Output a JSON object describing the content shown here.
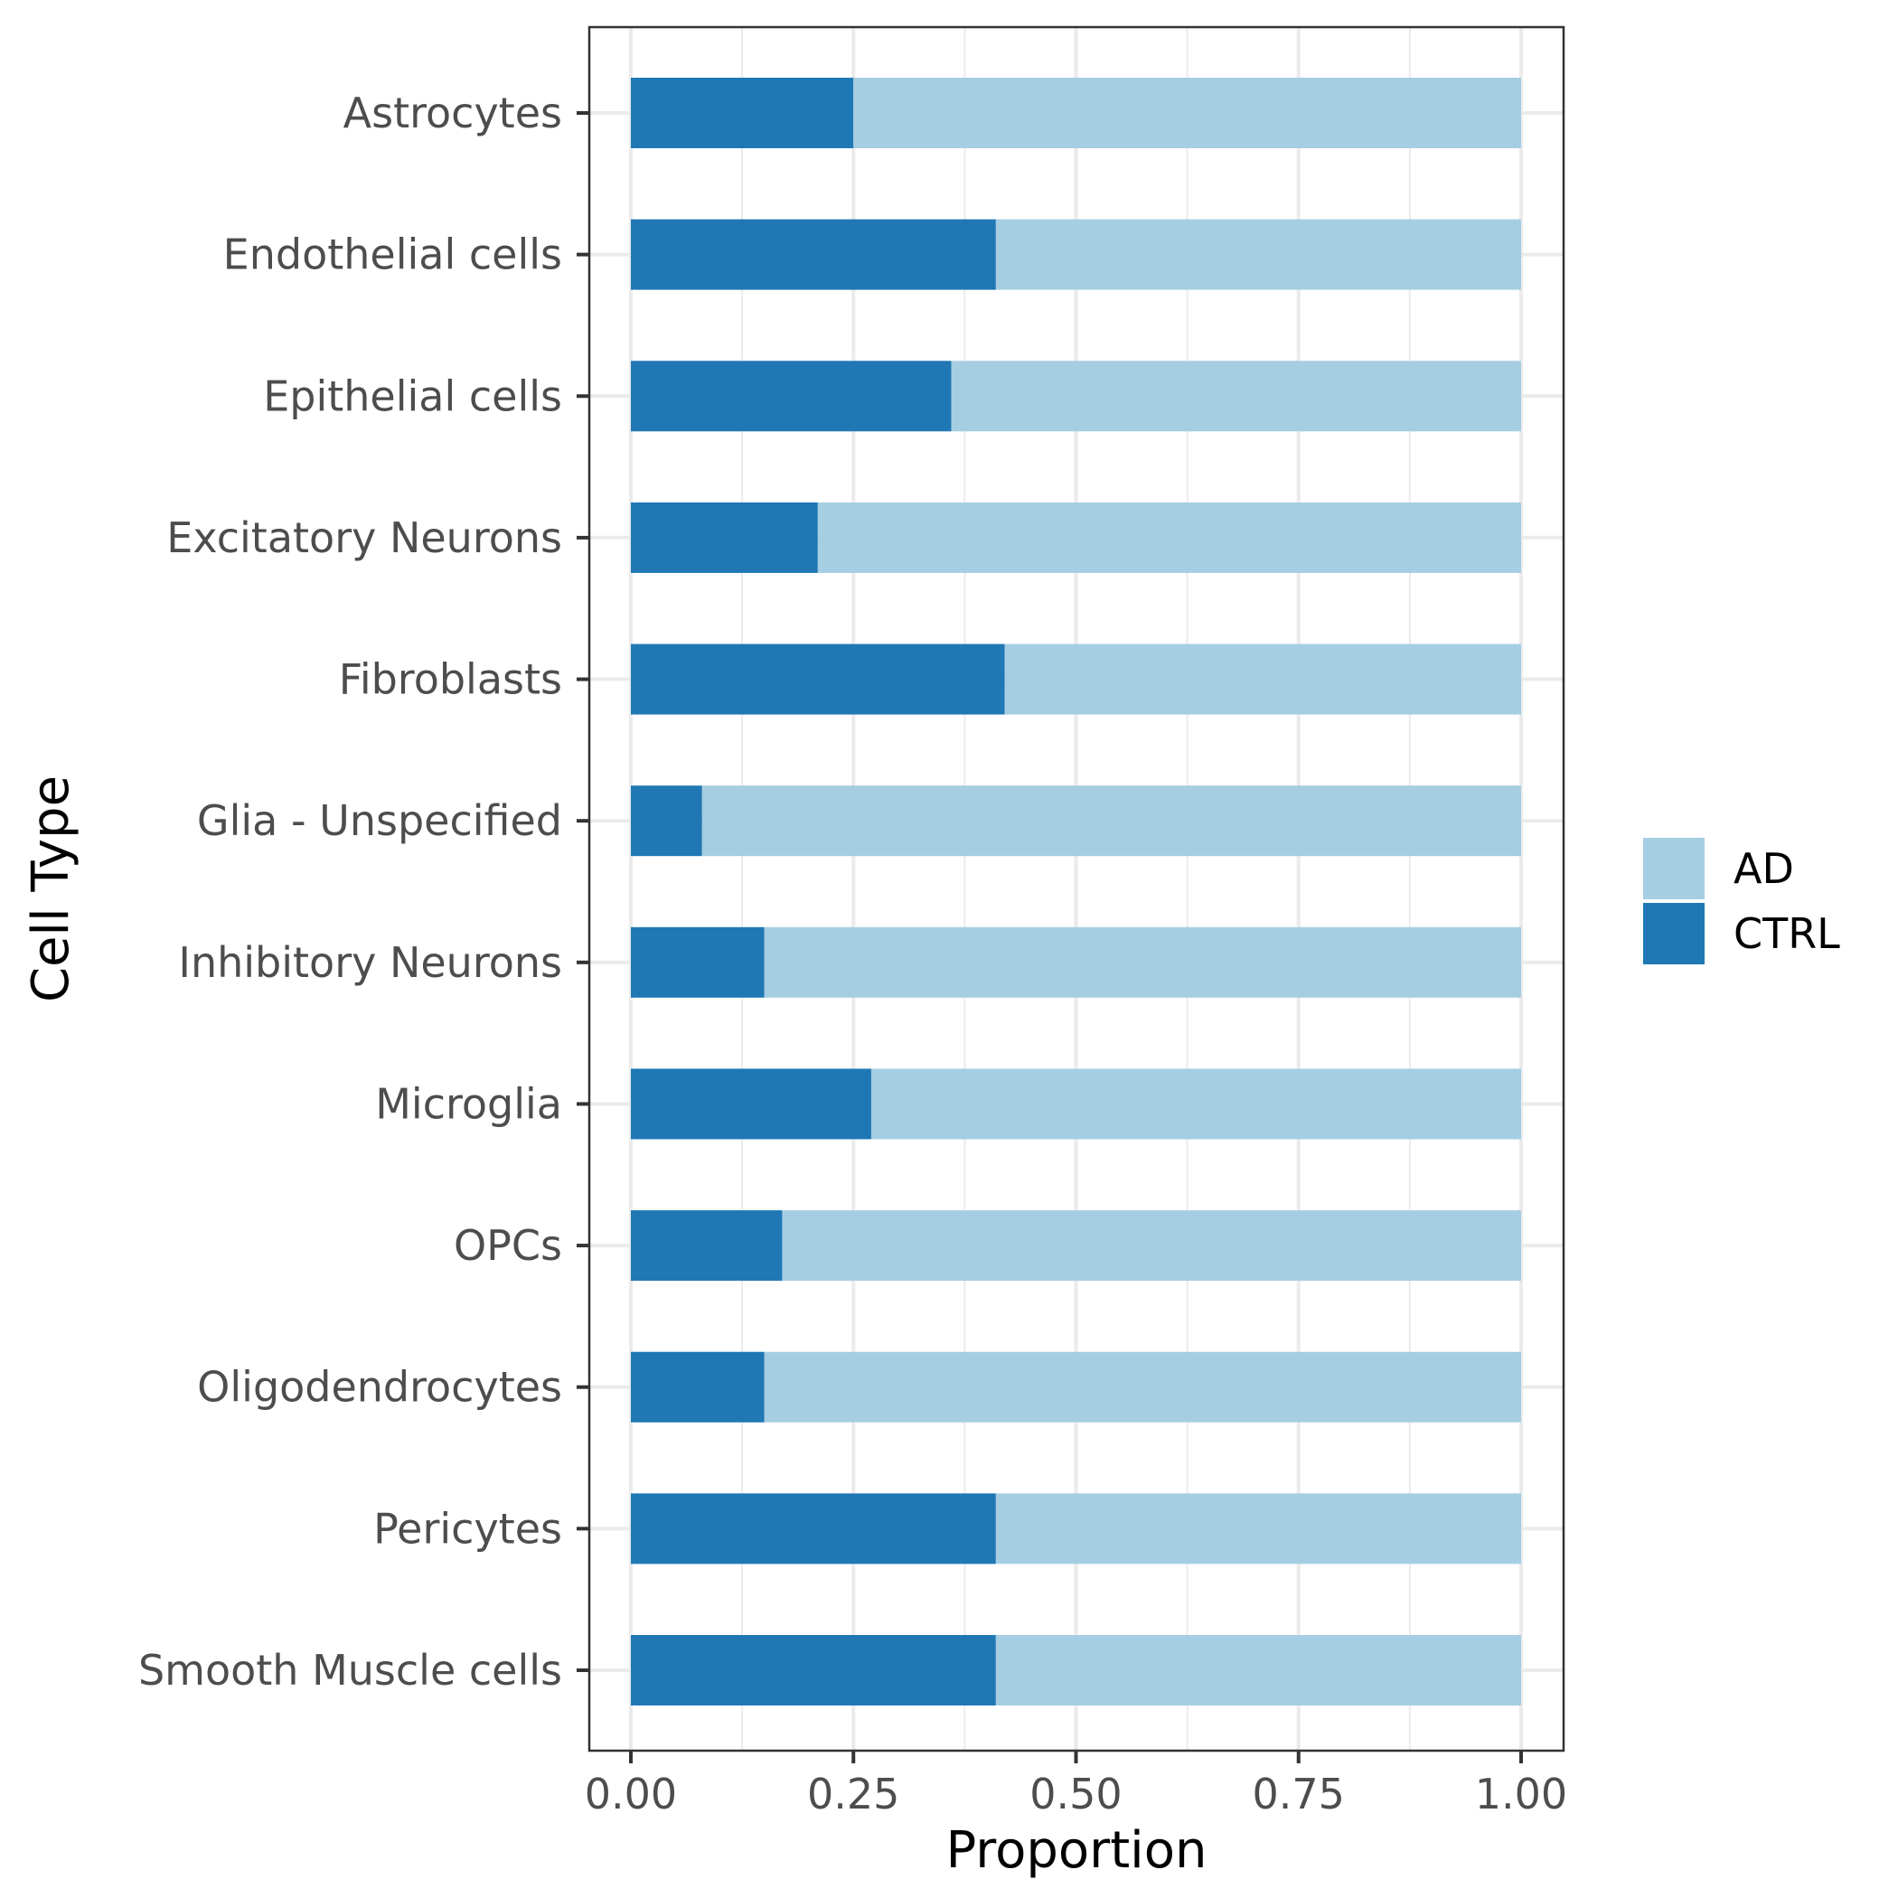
{
  "chart_data": {
    "type": "bar",
    "orientation": "horizontal",
    "stacked": true,
    "categories": [
      "Astrocytes",
      "Endothelial cells",
      "Epithelial cells",
      "Excitatory Neurons",
      "Fibroblasts",
      "Glia - Unspecified",
      "Inhibitory Neurons",
      "Microglia",
      "OPCs",
      "Oligodendrocytes",
      "Pericytes",
      "Smooth Muscle cells"
    ],
    "series": [
      {
        "name": "CTRL",
        "color": "#1f78b4",
        "values": [
          0.25,
          0.41,
          0.36,
          0.21,
          0.42,
          0.08,
          0.15,
          0.27,
          0.17,
          0.15,
          0.41,
          0.41
        ]
      },
      {
        "name": "AD",
        "color": "#a6cee3",
        "values": [
          0.75,
          0.59,
          0.64,
          0.79,
          0.58,
          0.92,
          0.85,
          0.73,
          0.83,
          0.85,
          0.59,
          0.59
        ]
      }
    ],
    "xlabel": "Proportion",
    "ylabel": "Cell Type",
    "xlim": [
      0,
      1
    ],
    "xticks": [
      "0.00",
      "0.25",
      "0.50",
      "0.75",
      "1.00"
    ],
    "grid": true,
    "legend_position": "right",
    "legend": [
      "AD",
      "CTRL"
    ]
  }
}
